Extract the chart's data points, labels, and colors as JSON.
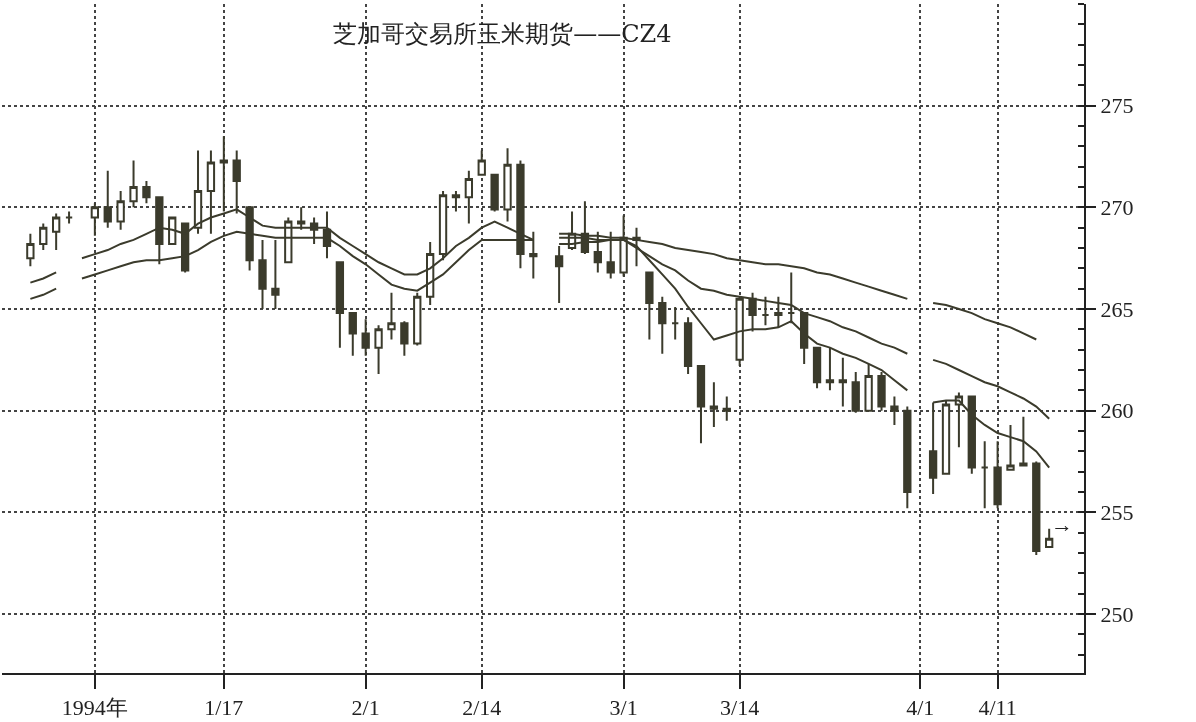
{
  "chart_data": {
    "type": "candlestick",
    "title": "芝加哥交易所玉米期货——CZ4",
    "categories": [
      null,
      null,
      null,
      null,
      null,
      "1994年",
      null,
      null,
      null,
      null,
      null,
      null,
      null,
      null,
      null,
      "1/17",
      null,
      null,
      null,
      null,
      null,
      null,
      null,
      null,
      null,
      null,
      "2/1",
      null,
      null,
      null,
      null,
      null,
      null,
      null,
      null,
      "2/14",
      null,
      null,
      null,
      null,
      null,
      null,
      null,
      null,
      null,
      null,
      "3/1",
      null,
      null,
      null,
      null,
      null,
      null,
      null,
      null,
      "3/14",
      null,
      null,
      null,
      null,
      null,
      null,
      null,
      null,
      null,
      null,
      null,
      null,
      null,
      "4/1",
      null,
      null,
      null,
      null,
      null,
      "4/11",
      null,
      null,
      null,
      null
    ],
    "ohlc": [
      [
        267.5,
        268.7,
        267.1,
        268.2
      ],
      [
        268.2,
        269.2,
        267.9,
        269.0
      ],
      [
        268.8,
        269.7,
        267.9,
        269.5
      ],
      [
        269.5,
        269.8,
        269.2,
        269.5
      ],
      null,
      [
        269.5,
        270.2,
        268.6,
        270.0
      ],
      [
        270.0,
        271.8,
        269.0,
        269.3
      ],
      [
        269.3,
        270.8,
        268.9,
        270.3
      ],
      [
        270.3,
        272.3,
        270.0,
        271.0
      ],
      [
        271.0,
        271.3,
        270.2,
        270.5
      ],
      [
        270.5,
        270.5,
        267.2,
        268.2
      ],
      [
        268.2,
        269.5,
        268.2,
        269.5
      ],
      [
        269.2,
        269.2,
        266.8,
        266.9
      ],
      [
        269.0,
        272.8,
        268.7,
        270.8
      ],
      [
        270.8,
        272.8,
        268.7,
        272.2
      ],
      [
        272.2,
        273.5,
        269.8,
        272.3
      ],
      [
        272.3,
        272.8,
        269.7,
        271.3
      ],
      [
        270.0,
        270.0,
        266.9,
        267.4
      ],
      [
        267.4,
        268.4,
        265.0,
        266.0
      ],
      [
        266.0,
        268.4,
        265.0,
        265.7
      ],
      [
        267.3,
        269.5,
        267.3,
        269.3
      ],
      [
        269.3,
        270.0,
        268.9,
        269.2
      ],
      [
        269.2,
        269.5,
        268.2,
        268.9
      ],
      [
        268.9,
        269.8,
        267.5,
        268.1
      ],
      [
        267.3,
        267.3,
        263.1,
        264.8
      ],
      [
        264.8,
        264.8,
        262.7,
        263.8
      ],
      [
        263.8,
        264.5,
        262.7,
        263.1
      ],
      [
        263.1,
        264.2,
        261.8,
        264.0
      ],
      [
        264.0,
        265.8,
        263.5,
        264.3
      ],
      [
        264.3,
        264.4,
        262.7,
        263.3
      ],
      [
        263.3,
        265.8,
        263.2,
        265.6
      ],
      [
        265.6,
        268.3,
        265.2,
        267.7
      ],
      [
        267.7,
        270.8,
        267.4,
        270.6
      ],
      [
        270.6,
        270.8,
        269.8,
        270.5
      ],
      [
        270.5,
        271.8,
        269.2,
        271.4
      ],
      [
        271.6,
        272.8,
        271.6,
        272.3
      ],
      [
        271.6,
        271.6,
        269.8,
        269.9
      ],
      [
        269.9,
        272.9,
        269.3,
        272.1
      ],
      [
        272.1,
        272.3,
        267.0,
        267.7
      ],
      [
        267.7,
        268.8,
        266.5,
        267.6
      ],
      null,
      [
        267.6,
        268.1,
        265.3,
        267.1
      ],
      [
        268.0,
        269.8,
        267.9,
        268.7
      ],
      [
        268.7,
        270.3,
        267.7,
        267.8
      ],
      [
        267.8,
        268.8,
        266.8,
        267.3
      ],
      [
        267.3,
        268.8,
        266.5,
        266.8
      ],
      [
        266.8,
        269.6,
        266.6,
        268.5
      ],
      [
        268.5,
        269.0,
        267.1,
        268.4
      ],
      [
        266.8,
        266.8,
        263.5,
        265.3
      ],
      [
        265.3,
        265.6,
        262.8,
        264.3
      ],
      [
        264.3,
        265.1,
        263.5,
        264.3
      ],
      [
        264.3,
        264.6,
        261.8,
        262.2
      ],
      [
        262.2,
        262.2,
        258.4,
        260.2
      ],
      [
        260.2,
        261.4,
        259.2,
        260.1
      ],
      [
        260.1,
        260.7,
        259.5,
        260.0
      ],
      [
        262.5,
        265.6,
        262.2,
        265.5
      ],
      [
        265.5,
        265.8,
        263.9,
        264.7
      ],
      [
        264.7,
        265.6,
        264.2,
        264.7
      ],
      [
        264.7,
        265.6,
        264.1,
        264.8
      ],
      [
        264.8,
        266.8,
        264.3,
        264.8
      ],
      [
        264.8,
        264.8,
        262.3,
        263.1
      ],
      [
        263.1,
        263.1,
        261.1,
        261.4
      ],
      [
        261.4,
        263.1,
        261.0,
        261.5
      ],
      [
        261.5,
        262.6,
        260.2,
        261.4
      ],
      [
        261.4,
        261.9,
        259.9,
        260.0
      ],
      [
        260.0,
        262.3,
        260.0,
        261.7
      ],
      [
        261.7,
        261.9,
        260.0,
        260.2
      ],
      [
        260.2,
        260.7,
        259.3,
        260.0
      ],
      [
        260.0,
        260.2,
        255.2,
        256.0
      ],
      null,
      [
        258.0,
        260.4,
        255.9,
        256.7
      ],
      [
        256.9,
        260.5,
        256.9,
        260.3
      ],
      [
        260.3,
        260.9,
        258.2,
        260.7
      ],
      [
        260.7,
        260.7,
        256.9,
        257.2
      ],
      [
        257.2,
        258.5,
        255.2,
        257.2
      ],
      [
        257.2,
        258.5,
        255.2,
        255.4
      ],
      [
        257.1,
        259.3,
        257.1,
        257.3
      ],
      [
        257.3,
        259.7,
        257.3,
        257.4
      ],
      [
        257.4,
        257.5,
        252.9,
        253.1
      ],
      [
        253.3,
        254.2,
        253.3,
        253.7
      ]
    ],
    "color": "#3b3b2c",
    "series": [
      {
        "type": "line",
        "color": "#3b3b2c",
        "values": [
          266.3,
          266.5,
          266.8,
          null,
          267.5,
          267.7,
          267.9,
          268.2,
          268.4,
          268.7,
          269.0,
          268.9,
          268.7,
          269.2,
          269.5,
          269.7,
          269.9,
          269.5,
          269.1,
          269.0,
          269.0,
          269.0,
          269.0,
          269.0,
          268.5,
          268.1,
          267.7,
          267.3,
          267.0,
          266.7,
          266.7,
          267.0,
          267.5,
          268.1,
          268.5,
          269.0,
          269.3,
          269.0,
          268.7,
          268.4,
          null,
          268.2,
          268.2,
          268.3,
          268.3,
          268.4,
          268.4,
          268.1,
          267.4,
          266.7,
          266.0,
          265.1,
          264.3,
          263.5,
          263.7,
          263.9,
          264.0,
          264.0,
          264.1,
          264.4,
          263.8,
          263.3,
          263.1,
          262.8,
          262.6,
          262.3,
          262.0,
          261.5,
          261.0,
          null,
          260.4,
          260.5,
          260.5,
          259.8,
          259.3,
          258.9,
          258.7,
          258.5,
          258.0,
          257.2
        ]
      },
      {
        "type": "line",
        "color": "#3b3b2c",
        "values": [
          265.5,
          265.7,
          266.0,
          null,
          266.5,
          266.7,
          266.9,
          267.1,
          267.3,
          267.4,
          267.4,
          267.5,
          267.6,
          267.9,
          268.3,
          268.6,
          268.8,
          268.7,
          268.6,
          268.5,
          268.5,
          268.5,
          268.5,
          268.5,
          268.1,
          267.6,
          267.2,
          266.7,
          266.2,
          266.0,
          265.9,
          266.3,
          266.7,
          267.3,
          267.9,
          268.4,
          268.4,
          268.4,
          268.4,
          268.4,
          null,
          268.5,
          268.5,
          268.5,
          268.4,
          268.4,
          268.4,
          268.0,
          267.6,
          267.2,
          266.9,
          266.4,
          266.0,
          265.9,
          265.7,
          265.6,
          265.5,
          265.4,
          265.3,
          265.2,
          264.8,
          264.6,
          264.4,
          264.1,
          263.9,
          263.6,
          263.3,
          263.1,
          262.8,
          null,
          262.5,
          262.3,
          262.0,
          261.7,
          261.4,
          261.2,
          260.9,
          260.6,
          260.2,
          259.6
        ]
      },
      {
        "type": "line",
        "color": "#3b3b2c",
        "values": [
          null,
          null,
          null,
          null,
          null,
          null,
          null,
          null,
          null,
          null,
          null,
          null,
          null,
          null,
          null,
          null,
          null,
          null,
          null,
          null,
          null,
          null,
          null,
          null,
          null,
          null,
          null,
          null,
          null,
          null,
          null,
          null,
          null,
          null,
          null,
          null,
          null,
          null,
          null,
          null,
          null,
          268.7,
          268.7,
          268.6,
          268.6,
          268.5,
          268.5,
          268.4,
          268.3,
          268.2,
          268.0,
          267.9,
          267.8,
          267.7,
          267.5,
          267.4,
          267.3,
          267.2,
          267.2,
          267.1,
          267.0,
          266.8,
          266.7,
          266.5,
          266.3,
          266.1,
          265.9,
          265.7,
          265.5,
          null,
          265.3,
          265.2,
          265.0,
          264.8,
          264.5,
          264.3,
          264.1,
          263.8,
          263.5,
          null
        ]
      }
    ],
    "annotations": [
      "→"
    ],
    "ylim": [
      247.1,
      280.0
    ],
    "yticks": [
      250,
      255,
      260,
      265,
      270,
      275
    ],
    "grid": true,
    "line_style": "solid"
  }
}
